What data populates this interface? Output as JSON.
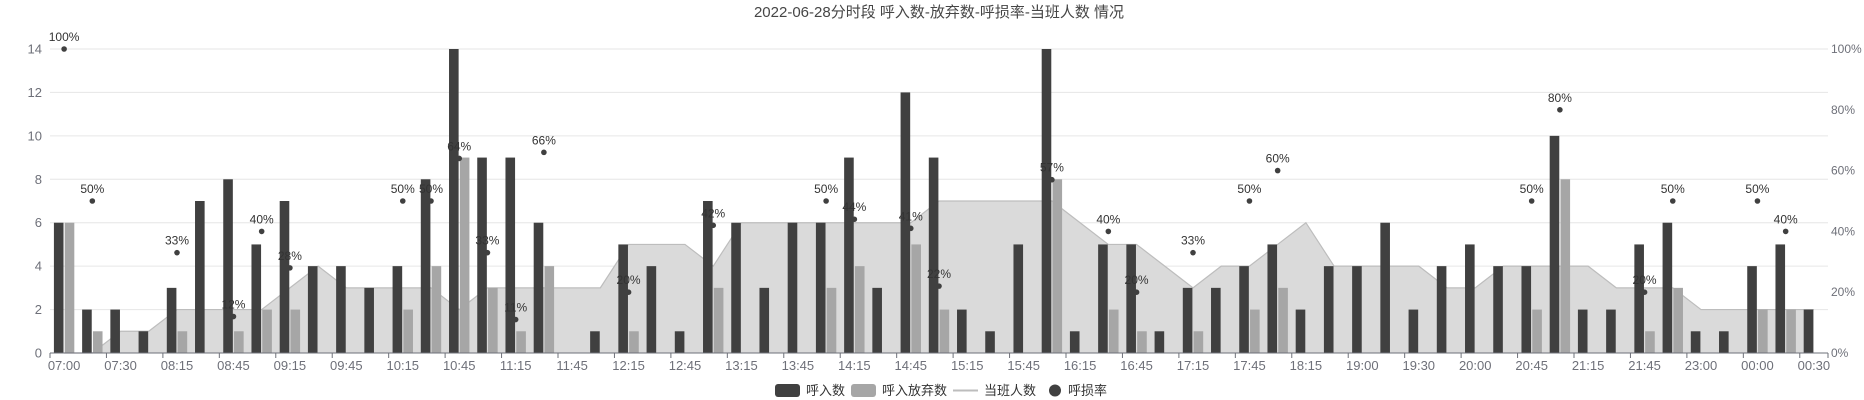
{
  "chart_data": {
    "type": "bar",
    "title": "2022-06-28分时段 呼入数-放弃数-呼损率-当班人数 情况",
    "x_tick_labels": [
      "07:00",
      "",
      "07:30",
      "",
      "08:15",
      "",
      "08:45",
      "",
      "09:15",
      "",
      "09:45",
      "",
      "10:15",
      "",
      "10:45",
      "",
      "11:15",
      "",
      "11:45",
      "",
      "12:15",
      "",
      "12:45",
      "",
      "13:15",
      "",
      "13:45",
      "",
      "14:15",
      "",
      "14:45",
      "",
      "15:15",
      "",
      "15:45",
      "",
      "16:15",
      "",
      "16:45",
      "",
      "17:15",
      "",
      "17:45",
      "",
      "18:15",
      "",
      "19:00",
      "",
      "19:30",
      "",
      "20:00",
      "",
      "20:45",
      "",
      "21:15",
      "",
      "21:45",
      "",
      "23:00",
      "",
      "00:00",
      "",
      "00:30"
    ],
    "y_left": {
      "min": 0,
      "max": 14,
      "ticks": [
        0,
        2,
        4,
        6,
        8,
        10,
        12,
        14
      ]
    },
    "y_right": {
      "min": 0,
      "max": 100,
      "ticks": [
        0,
        20,
        40,
        60,
        80,
        100
      ],
      "unit": "%"
    },
    "grid": true,
    "legend": "bottom",
    "series": [
      {
        "name": "呼入数",
        "type": "bar",
        "y_axis": "left",
        "color": "#404040",
        "values": [
          6,
          2,
          2,
          1,
          3,
          7,
          8,
          5,
          7,
          4,
          4,
          3,
          4,
          8,
          14,
          9,
          9,
          6,
          0,
          1,
          5,
          4,
          1,
          7,
          6,
          3,
          6,
          6,
          9,
          3,
          12,
          9,
          2,
          1,
          5,
          14,
          1,
          5,
          5,
          1,
          3,
          3,
          4,
          5,
          2,
          4,
          4,
          6,
          2,
          4,
          5,
          4,
          4,
          10,
          2,
          2,
          5,
          6,
          1,
          1,
          4,
          5,
          2
        ]
      },
      {
        "name": "呼入放弃数",
        "type": "bar",
        "y_axis": "left",
        "color": "#a6a6a6",
        "values": [
          6,
          1,
          0,
          0,
          1,
          0,
          1,
          2,
          2,
          0,
          0,
          0,
          2,
          4,
          9,
          3,
          1,
          4,
          0,
          0,
          1,
          0,
          0,
          3,
          0,
          0,
          0,
          3,
          4,
          0,
          5,
          2,
          0,
          0,
          0,
          8,
          0,
          2,
          1,
          0,
          1,
          0,
          2,
          3,
          0,
          0,
          0,
          0,
          0,
          0,
          0,
          0,
          2,
          8,
          0,
          0,
          1,
          3,
          0,
          0,
          2,
          2,
          0
        ]
      },
      {
        "name": "当班人数",
        "type": "area",
        "y_axis": "left",
        "color": "#dadada",
        "line_color": "#bdbdbd",
        "values": [
          0,
          0,
          1,
          1,
          2,
          2,
          2,
          2,
          3,
          4,
          3,
          3,
          3,
          3,
          2,
          3,
          3,
          3,
          3,
          3,
          5,
          5,
          5,
          4,
          6,
          6,
          6,
          6,
          6,
          6,
          6,
          7,
          7,
          7,
          7,
          7,
          6,
          5,
          5,
          4,
          3,
          4,
          4,
          5,
          6,
          4,
          4,
          4,
          4,
          3,
          3,
          4,
          4,
          4,
          4,
          3,
          3,
          3,
          2,
          2,
          2,
          2,
          2
        ]
      },
      {
        "name": "呼损率",
        "type": "scatter",
        "y_axis": "right",
        "color": "#404040",
        "values": [
          100,
          50,
          null,
          null,
          33,
          null,
          12,
          40,
          28,
          null,
          null,
          null,
          50,
          50,
          64,
          33,
          11,
          66,
          null,
          null,
          20,
          null,
          null,
          42,
          null,
          null,
          null,
          50,
          44,
          null,
          41,
          22,
          null,
          null,
          null,
          57,
          null,
          40,
          20,
          null,
          33,
          null,
          50,
          60,
          null,
          null,
          null,
          null,
          null,
          null,
          null,
          null,
          50,
          80,
          null,
          null,
          20,
          50,
          null,
          null,
          50,
          40,
          null
        ]
      }
    ]
  }
}
